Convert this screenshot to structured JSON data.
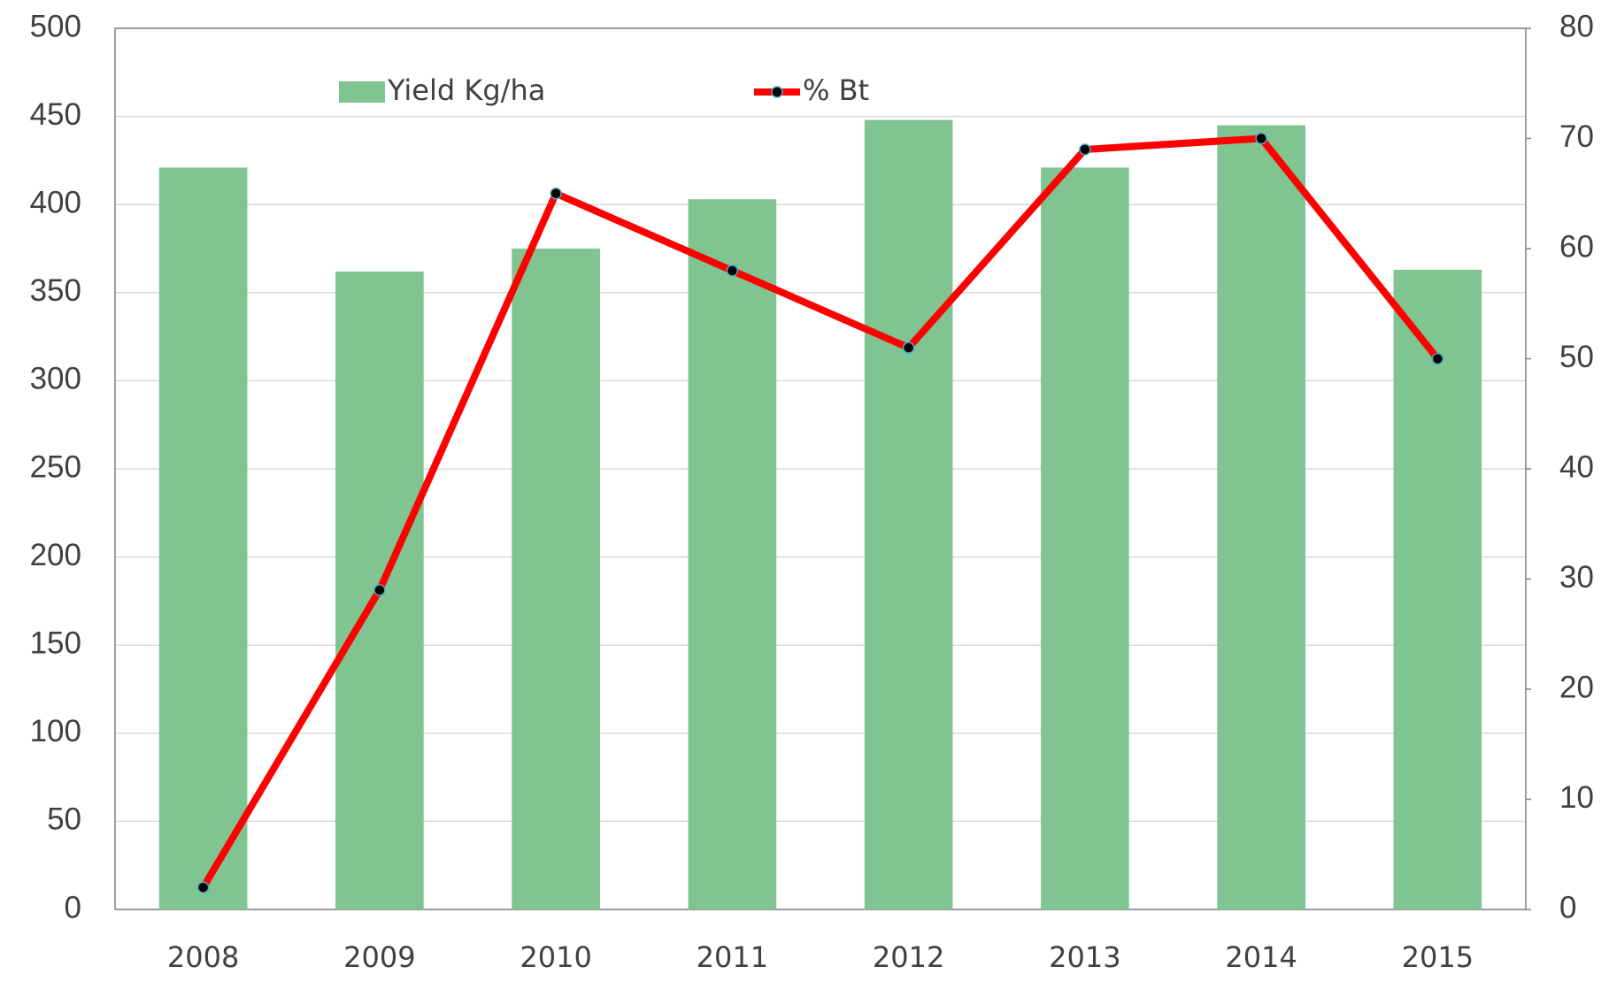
{
  "chart_data": {
    "type": "bar-line",
    "categories": [
      "2008",
      "2009",
      "2010",
      "2011",
      "2012",
      "2013",
      "2014",
      "2015"
    ],
    "series": [
      {
        "name": "Yield Kg/ha",
        "color": "#7fc491",
        "type": "bar",
        "values": [
          421,
          362,
          375,
          403,
          448,
          421,
          445,
          363
        ]
      },
      {
        "name": "% Bt",
        "color": "#ff0000",
        "type": "line",
        "axis": "y2",
        "values": [
          2,
          29,
          65,
          58,
          51,
          69,
          70,
          50
        ]
      }
    ],
    "ylim": [
      0,
      500
    ],
    "yticks": [
      0,
      50,
      100,
      150,
      200,
      250,
      300,
      350,
      400,
      450,
      500
    ],
    "y2lim": [
      0,
      80
    ],
    "y2ticks": [
      0,
      10,
      20,
      30,
      40,
      50,
      60,
      70,
      80
    ],
    "grid": true,
    "legend": "top"
  }
}
